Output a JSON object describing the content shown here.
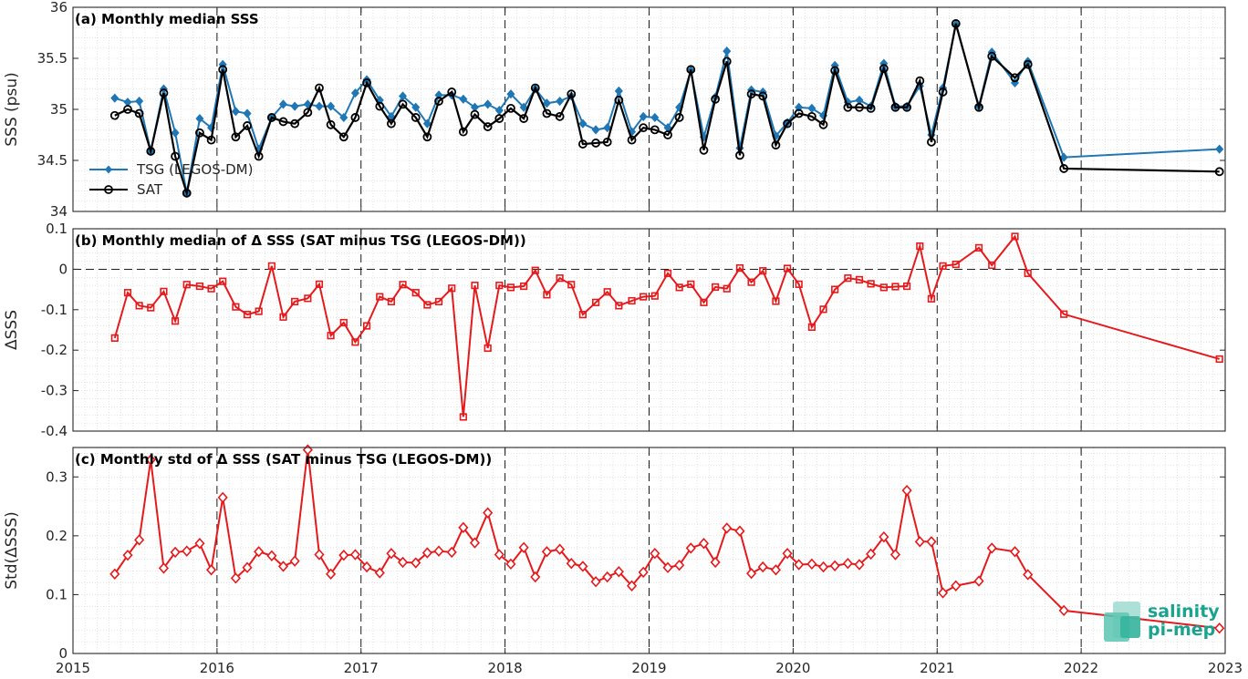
{
  "colors": {
    "tsg": "#1f77b4",
    "sat": "#000000",
    "delta": "#e41a1c",
    "axis": "#262626",
    "logo": "#1aa38f"
  },
  "logo": {
    "line1": "salinity",
    "line2": "pi-mep"
  },
  "xaxis": {
    "ticks": [
      "2015",
      "2016",
      "2017",
      "2018",
      "2019",
      "2020",
      "2021",
      "2022",
      "2023"
    ]
  },
  "chart_data": [
    {
      "type": "line",
      "title": "(a) Monthly median SSS",
      "ylabel": "SSS (psu)",
      "ylim": [
        34,
        36
      ],
      "yticks": [
        "34",
        "34.5",
        "35",
        "35.5",
        "36"
      ],
      "xlim": [
        2015,
        2023
      ],
      "grid": true,
      "legend": "bottom-left",
      "x": [
        2015.29,
        2015.38,
        2015.46,
        2015.54,
        2015.63,
        2015.71,
        2015.79,
        2015.88,
        2015.96,
        2016.04,
        2016.13,
        2016.21,
        2016.29,
        2016.38,
        2016.46,
        2016.54,
        2016.63,
        2016.71,
        2016.79,
        2016.88,
        2016.96,
        2017.04,
        2017.13,
        2017.21,
        2017.29,
        2017.38,
        2017.46,
        2017.54,
        2017.63,
        2017.71,
        2017.79,
        2017.88,
        2017.96,
        2018.04,
        2018.13,
        2018.21,
        2018.29,
        2018.38,
        2018.46,
        2018.54,
        2018.63,
        2018.71,
        2018.79,
        2018.88,
        2018.96,
        2019.04,
        2019.13,
        2019.21,
        2019.29,
        2019.38,
        2019.46,
        2019.54,
        2019.63,
        2019.71,
        2019.79,
        2019.88,
        2019.96,
        2020.04,
        2020.13,
        2020.21,
        2020.29,
        2020.38,
        2020.46,
        2020.54,
        2020.63,
        2020.71,
        2020.79,
        2020.88,
        2020.96,
        2021.04,
        2021.13,
        2021.29,
        2021.38,
        2021.54,
        2021.63,
        2021.88,
        2022.96
      ],
      "series": [
        {
          "name": "TSG (LEGOS-DM)",
          "marker": "diamond",
          "values": [
            35.11,
            35.07,
            35.08,
            34.59,
            35.2,
            34.77,
            34.18,
            34.91,
            34.82,
            35.44,
            34.98,
            34.96,
            34.61,
            34.92,
            35.05,
            35.03,
            35.05,
            35.03,
            35.03,
            34.92,
            35.16,
            35.29,
            35.09,
            34.93,
            35.13,
            35.02,
            34.86,
            35.14,
            35.14,
            35.1,
            35.02,
            35.05,
            34.99,
            35.15,
            35.02,
            35.2,
            35.06,
            35.08,
            35.13,
            34.86,
            34.8,
            34.82,
            35.18,
            34.78,
            34.93,
            34.92,
            34.82,
            35.02,
            35.38,
            34.73,
            35.12,
            35.57,
            34.62,
            35.19,
            35.17,
            34.74,
            34.87,
            35.02,
            35.01,
            34.94,
            35.43,
            35.07,
            35.09,
            35.03,
            35.45,
            35.03,
            35.03,
            35.23,
            34.75,
            35.21,
            35.83,
            35.03,
            35.56,
            35.26,
            35.47,
            34.53,
            34.61
          ]
        },
        {
          "name": "SAT",
          "marker": "circle",
          "values": [
            34.94,
            35.0,
            34.96,
            34.59,
            35.16,
            34.54,
            34.18,
            34.77,
            34.7,
            35.39,
            34.73,
            34.84,
            34.54,
            34.92,
            34.88,
            34.86,
            34.97,
            35.21,
            34.85,
            34.73,
            34.92,
            35.26,
            35.03,
            34.86,
            35.05,
            34.92,
            34.73,
            35.08,
            35.17,
            34.78,
            34.95,
            34.83,
            34.91,
            35.01,
            34.91,
            35.21,
            34.96,
            34.93,
            35.15,
            34.66,
            34.67,
            34.68,
            35.09,
            34.7,
            34.82,
            34.8,
            34.75,
            34.92,
            35.39,
            34.6,
            35.1,
            35.47,
            34.55,
            35.15,
            35.13,
            34.65,
            34.86,
            34.96,
            34.93,
            34.85,
            35.38,
            35.02,
            35.02,
            35.01,
            35.4,
            35.02,
            35.02,
            35.28,
            34.68,
            35.17,
            35.84,
            35.02,
            35.52,
            35.31,
            35.44,
            34.42,
            34.39
          ]
        }
      ]
    },
    {
      "type": "line",
      "title": "(b) Monthly median of Δ SSS (SAT minus TSG (LEGOS-DM))",
      "ylabel": "ΔSSS",
      "ylim": [
        -0.4,
        0.1
      ],
      "yticks": [
        "-0.4",
        "-0.3",
        "-0.2",
        "-0.1",
        "0",
        "0.1"
      ],
      "xlim": [
        2015,
        2023
      ],
      "grid": true,
      "reference_line": 0,
      "x": [
        2015.29,
        2015.38,
        2015.46,
        2015.54,
        2015.63,
        2015.71,
        2015.79,
        2015.88,
        2015.96,
        2016.04,
        2016.13,
        2016.21,
        2016.29,
        2016.38,
        2016.46,
        2016.54,
        2016.63,
        2016.71,
        2016.79,
        2016.88,
        2016.96,
        2017.04,
        2017.13,
        2017.21,
        2017.29,
        2017.38,
        2017.46,
        2017.54,
        2017.63,
        2017.71,
        2017.79,
        2017.88,
        2017.96,
        2018.04,
        2018.13,
        2018.21,
        2018.29,
        2018.38,
        2018.46,
        2018.54,
        2018.63,
        2018.71,
        2018.79,
        2018.88,
        2018.96,
        2019.04,
        2019.13,
        2019.21,
        2019.29,
        2019.38,
        2019.46,
        2019.54,
        2019.63,
        2019.71,
        2019.79,
        2019.88,
        2019.96,
        2020.04,
        2020.13,
        2020.21,
        2020.29,
        2020.38,
        2020.46,
        2020.54,
        2020.63,
        2020.71,
        2020.79,
        2020.88,
        2020.96,
        2021.04,
        2021.13,
        2021.29,
        2021.38,
        2021.54,
        2021.63,
        2021.88,
        2022.96
      ],
      "series": [
        {
          "name": "",
          "marker": "square",
          "values": [
            -0.17,
            -0.058,
            -0.09,
            -0.095,
            -0.055,
            -0.128,
            -0.038,
            -0.042,
            -0.048,
            -0.03,
            -0.093,
            -0.112,
            -0.104,
            0.008,
            -0.118,
            -0.08,
            -0.072,
            -0.037,
            -0.164,
            -0.132,
            -0.18,
            -0.14,
            -0.068,
            -0.08,
            -0.038,
            -0.058,
            -0.088,
            -0.08,
            -0.047,
            -0.365,
            -0.04,
            -0.195,
            -0.04,
            -0.045,
            -0.042,
            -0.003,
            -0.063,
            -0.022,
            -0.038,
            -0.112,
            -0.082,
            -0.056,
            -0.09,
            -0.078,
            -0.068,
            -0.066,
            -0.01,
            -0.045,
            -0.037,
            -0.082,
            -0.044,
            -0.048,
            0.003,
            -0.032,
            -0.004,
            -0.079,
            0.002,
            -0.037,
            -0.143,
            -0.099,
            -0.05,
            -0.022,
            -0.026,
            -0.036,
            -0.045,
            -0.043,
            -0.042,
            0.057,
            -0.073,
            0.008,
            0.012,
            0.053,
            0.01,
            0.081,
            -0.01,
            -0.111,
            -0.222
          ]
        }
      ]
    },
    {
      "type": "line",
      "title": "(c) Monthly std of Δ SSS (SAT minus TSG (LEGOS-DM))",
      "ylabel": "Std(ΔSSS)",
      "ylim": [
        0,
        0.35
      ],
      "yticks": [
        "0",
        "0.1",
        "0.2",
        "0.3"
      ],
      "xlim": [
        2015,
        2023
      ],
      "grid": true,
      "x": [
        2015.29,
        2015.38,
        2015.46,
        2015.54,
        2015.63,
        2015.71,
        2015.79,
        2015.88,
        2015.96,
        2016.04,
        2016.13,
        2016.21,
        2016.29,
        2016.38,
        2016.46,
        2016.54,
        2016.63,
        2016.71,
        2016.79,
        2016.88,
        2016.96,
        2017.04,
        2017.13,
        2017.21,
        2017.29,
        2017.38,
        2017.46,
        2017.54,
        2017.63,
        2017.71,
        2017.79,
        2017.88,
        2017.96,
        2018.04,
        2018.13,
        2018.21,
        2018.29,
        2018.38,
        2018.46,
        2018.54,
        2018.63,
        2018.71,
        2018.79,
        2018.88,
        2018.96,
        2019.04,
        2019.13,
        2019.21,
        2019.29,
        2019.38,
        2019.46,
        2019.54,
        2019.63,
        2019.71,
        2019.79,
        2019.88,
        2019.96,
        2020.04,
        2020.13,
        2020.21,
        2020.29,
        2020.38,
        2020.46,
        2020.54,
        2020.63,
        2020.71,
        2020.79,
        2020.88,
        2020.96,
        2021.04,
        2021.13,
        2021.29,
        2021.38,
        2021.54,
        2021.63,
        2021.88,
        2022.96
      ],
      "series": [
        {
          "name": "",
          "marker": "diamond-open",
          "values": [
            0.135,
            0.167,
            0.193,
            0.329,
            0.145,
            0.172,
            0.174,
            0.187,
            0.142,
            0.265,
            0.128,
            0.146,
            0.173,
            0.166,
            0.148,
            0.157,
            0.346,
            0.168,
            0.135,
            0.167,
            0.168,
            0.147,
            0.137,
            0.17,
            0.155,
            0.154,
            0.171,
            0.174,
            0.172,
            0.214,
            0.188,
            0.239,
            0.168,
            0.152,
            0.18,
            0.13,
            0.173,
            0.177,
            0.153,
            0.148,
            0.122,
            0.13,
            0.139,
            0.115,
            0.138,
            0.17,
            0.146,
            0.15,
            0.179,
            0.187,
            0.155,
            0.213,
            0.208,
            0.136,
            0.147,
            0.142,
            0.17,
            0.151,
            0.152,
            0.147,
            0.149,
            0.153,
            0.151,
            0.169,
            0.198,
            0.168,
            0.277,
            0.19,
            0.19,
            0.103,
            0.115,
            0.123,
            0.179,
            0.173,
            0.134,
            0.073,
            0.043
          ]
        }
      ]
    }
  ]
}
